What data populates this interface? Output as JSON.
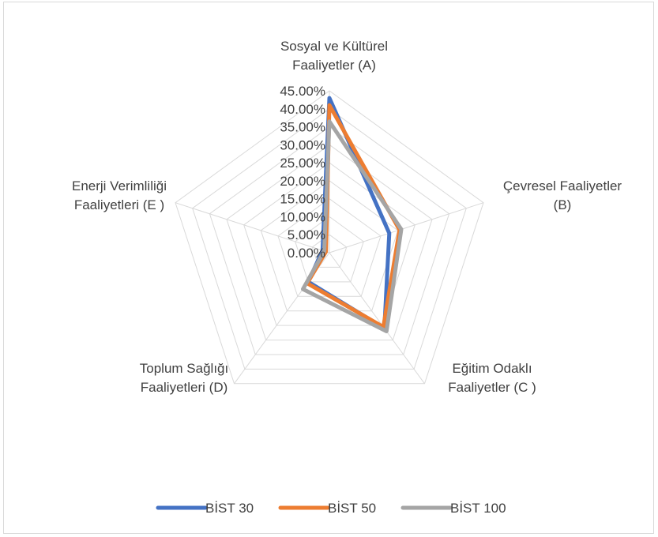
{
  "chart_data": {
    "type": "radar",
    "categories": [
      [
        "Sosyal ve Kültürel",
        "Faaliyetler (A)"
      ],
      [
        "Çevresel Faaliyetler",
        "(B)"
      ],
      [
        "Eğitim Odaklı",
        "Faaliyetler (C )"
      ],
      [
        "Toplum Sağlığı",
        "Faaliyetleri (D)"
      ],
      [
        "Enerji Verimliliği",
        "Faaliyetleri (E )"
      ]
    ],
    "ticks": [
      "0.00%",
      "5.00%",
      "10.00%",
      "15.00%",
      "20.00%",
      "25.00%",
      "30.00%",
      "35.00%",
      "40.00%",
      "45.00%"
    ],
    "rmax": 45,
    "grid": true,
    "legend_position": "bottom",
    "series": [
      {
        "name": "BİST 30",
        "color": "#4472c4",
        "values": [
          43,
          17.5,
          26,
          10,
          2
        ]
      },
      {
        "name": "BİST 50",
        "color": "#ed7d31",
        "values": [
          41,
          20.5,
          25.5,
          10.5,
          1
        ]
      },
      {
        "name": "BİST 100",
        "color": "#a5a5a5",
        "values": [
          36.5,
          21,
          27,
          12.5,
          1.5
        ]
      }
    ]
  }
}
